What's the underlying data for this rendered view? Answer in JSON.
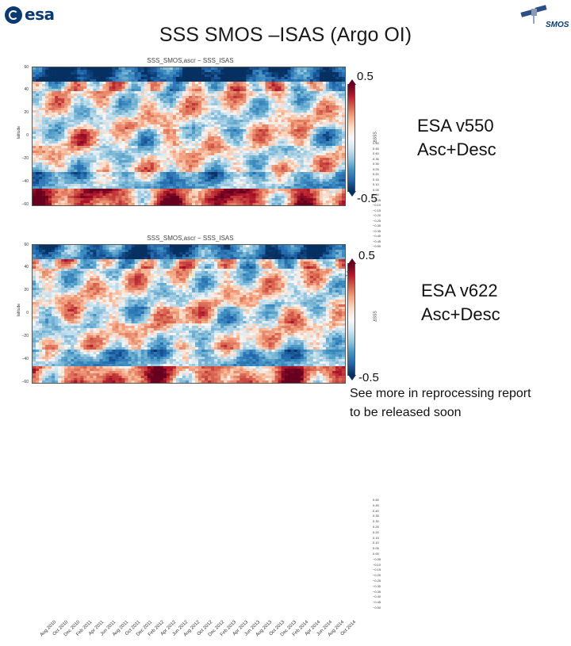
{
  "header": {
    "title": "SSS SMOS –ISAS (Argo OI)",
    "esa_logo_text": "esa",
    "smos_logo_text": "SMOS"
  },
  "chart_data": [
    {
      "type": "heatmap",
      "title": "SSS_SMOS,ascr − SSS_ISAS",
      "ylabel": "latitude",
      "yticks": [
        "60",
        "40",
        "20",
        "0",
        "−20",
        "−40",
        "−60"
      ],
      "ylim": [
        -60,
        60
      ],
      "xticks": [
        "Aug 2010",
        "Oct 2010",
        "Dec 2010",
        "Feb 2011",
        "Apr 2011",
        "Jun 2011",
        "Aug 2011",
        "Oct 2011",
        "Dec 2011",
        "Feb 2012",
        "Apr 2012",
        "Jun 2012",
        "Aug 2012",
        "Oct 2012",
        "Dec 2012",
        "Feb 2013",
        "Apr 2013",
        "Jun 2013",
        "Aug 2013",
        "Oct 2013",
        "Dec 2013",
        "Feb 2014",
        "Apr 2014",
        "Jun 2014",
        "Aug 2014",
        "Oct 2014"
      ],
      "colorbar": {
        "label": "ΔSSS",
        "ticks": [
          "0.50",
          "0.45",
          "0.40",
          "0.35",
          "0.30",
          "0.25",
          "0.20",
          "0.15",
          "0.10",
          "0.05",
          "0.00",
          "−0.05",
          "−0.10",
          "−0.15",
          "−0.20",
          "−0.25",
          "−0.30",
          "−0.35",
          "−0.40",
          "−0.45",
          "−0.50"
        ],
        "top_label": "0.5",
        "bottom_label": "-0.5",
        "range": [
          -0.5,
          0.5
        ]
      },
      "annotation": [
        "ESA v550",
        "Asc+Desc"
      ]
    },
    {
      "type": "heatmap",
      "title": "SSS_SMOS,ascr − SSS_ISAS",
      "ylabel": "latitude",
      "yticks": [
        "60",
        "40",
        "20",
        "0",
        "−20",
        "−40",
        "−60"
      ],
      "ylim": [
        -60,
        60
      ],
      "xticks": [
        "Aug 2010",
        "Oct 2010",
        "Dec 2010",
        "Feb 2011",
        "Apr 2011",
        "Jun 2011",
        "Aug 2011",
        "Oct 2011",
        "Dec 2011",
        "Feb 2012",
        "Apr 2012",
        "Jun 2012",
        "Aug 2012",
        "Oct 2012",
        "Dec 2012",
        "Feb 2013",
        "Apr 2013",
        "Jun 2013",
        "Aug 2013",
        "Oct 2013",
        "Dec 2013",
        "Feb 2014",
        "Apr 2014",
        "Jun 2014",
        "Aug 2014",
        "Oct 2014"
      ],
      "colorbar": {
        "label": "ΔSSS",
        "ticks": [
          "0.50",
          "0.45",
          "0.40",
          "0.35",
          "0.30",
          "0.25",
          "0.20",
          "0.15",
          "0.10",
          "0.05",
          "0.00",
          "−0.05",
          "−0.10",
          "−0.15",
          "−0.20",
          "−0.25",
          "−0.30",
          "−0.35",
          "−0.40",
          "−0.45",
          "−0.50"
        ],
        "top_label": "0.5",
        "bottom_label": "-0.5",
        "range": [
          -0.5,
          0.5
        ]
      },
      "annotation": [
        "ESA v622",
        "Asc+Desc"
      ]
    }
  ],
  "footer": {
    "note_line1": "See more in reprocessing report",
    "note_line2": "to be released soon"
  }
}
